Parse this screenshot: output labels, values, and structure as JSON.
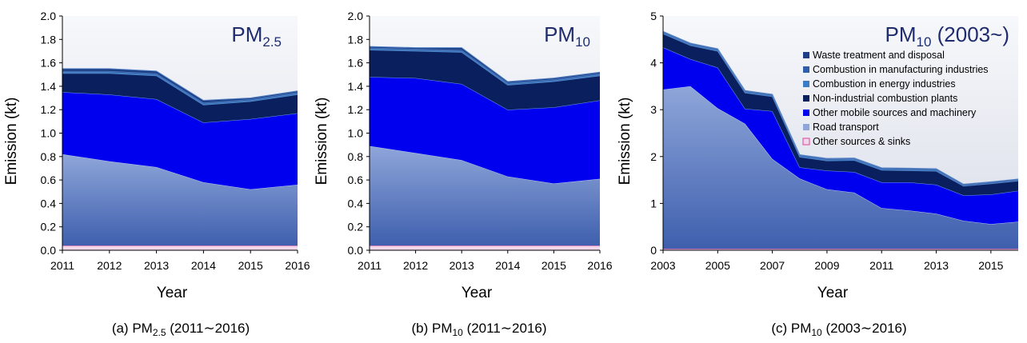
{
  "colors": {
    "road_transport_top": "#8ea6d9",
    "road_transport_bottom": "#3f5fae",
    "other_mobile": "#0000ee",
    "non_industrial": "#0a1f5e",
    "energy_industries": "#3a7dc4",
    "manufacturing": "#2f5fa8",
    "waste": "#1c3f86",
    "other_sources": "#f2d6ea",
    "other_sources_edge": "#e0449a",
    "plot_bg_top": "#f7f8fb",
    "plot_bg_bottom": "#d9dde8",
    "inset_title": "#1f2d6e"
  },
  "chart_data": [
    {
      "type": "area",
      "inset_title": {
        "main": "PM",
        "sub": "2.5"
      },
      "caption": {
        "prefix": "(a) PM",
        "sub": "2.5",
        "suffix": " (2011∼2016)"
      },
      "xlabel": "Year",
      "ylabel": "Emission (kt)",
      "xlim": [
        2011,
        2016
      ],
      "ylim": [
        0,
        2.0
      ],
      "x_ticks": [
        2011,
        2012,
        2013,
        2014,
        2015,
        2016
      ],
      "y_ticks": [
        "0.0",
        "0.2",
        "0.4",
        "0.6",
        "0.8",
        "1.0",
        "1.2",
        "1.4",
        "1.6",
        "1.8",
        "2.0"
      ],
      "x": [
        2011,
        2012,
        2013,
        2014,
        2015,
        2016
      ],
      "series": [
        {
          "name": "Other sources & sinks",
          "key": "other_sources",
          "values": [
            0.04,
            0.04,
            0.04,
            0.04,
            0.04,
            0.04
          ]
        },
        {
          "name": "Road transport",
          "key": "road_transport",
          "values": [
            0.78,
            0.72,
            0.67,
            0.54,
            0.48,
            0.52
          ]
        },
        {
          "name": "Other mobile sources and machinery",
          "key": "other_mobile",
          "values": [
            0.53,
            0.57,
            0.58,
            0.51,
            0.6,
            0.61
          ]
        },
        {
          "name": "Non-industrial combustion plants",
          "key": "non_industrial",
          "values": [
            0.16,
            0.18,
            0.2,
            0.15,
            0.15,
            0.16
          ]
        },
        {
          "name": "Combustion in energy industries",
          "key": "energy_industries",
          "values": [
            0.01,
            0.01,
            0.01,
            0.01,
            0.01,
            0.01
          ]
        },
        {
          "name": "Combustion in manufacturing industries",
          "key": "manufacturing",
          "values": [
            0.01,
            0.01,
            0.01,
            0.01,
            0.01,
            0.01
          ]
        },
        {
          "name": "Waste treatment and disposal",
          "key": "waste",
          "values": [
            0.02,
            0.02,
            0.02,
            0.02,
            0.01,
            0.01
          ]
        }
      ]
    },
    {
      "type": "area",
      "inset_title": {
        "main": "PM",
        "sub": "10"
      },
      "caption": {
        "prefix": "(b) PM",
        "sub": "10",
        "suffix": " (2011∼2016)"
      },
      "xlabel": "Year",
      "ylabel": "Emission (kt)",
      "xlim": [
        2011,
        2016
      ],
      "ylim": [
        0,
        2.0
      ],
      "x_ticks": [
        2011,
        2012,
        2013,
        2014,
        2015,
        2016
      ],
      "y_ticks": [
        "0.0",
        "0.2",
        "0.4",
        "0.6",
        "0.8",
        "1.0",
        "1.2",
        "1.4",
        "1.6",
        "1.8",
        "2.0"
      ],
      "x": [
        2011,
        2012,
        2013,
        2014,
        2015,
        2016
      ],
      "series": [
        {
          "name": "Other sources & sinks",
          "key": "other_sources",
          "values": [
            0.04,
            0.04,
            0.04,
            0.04,
            0.04,
            0.04
          ]
        },
        {
          "name": "Road transport",
          "key": "road_transport",
          "values": [
            0.85,
            0.79,
            0.73,
            0.59,
            0.53,
            0.57
          ]
        },
        {
          "name": "Other mobile sources and machinery",
          "key": "other_mobile",
          "values": [
            0.59,
            0.64,
            0.65,
            0.57,
            0.65,
            0.67
          ]
        },
        {
          "name": "Non-industrial combustion plants",
          "key": "non_industrial",
          "values": [
            0.23,
            0.23,
            0.27,
            0.21,
            0.22,
            0.21
          ]
        },
        {
          "name": "Combustion in energy industries",
          "key": "energy_industries",
          "values": [
            0.01,
            0.01,
            0.01,
            0.01,
            0.01,
            0.01
          ]
        },
        {
          "name": "Combustion in manufacturing industries",
          "key": "manufacturing",
          "values": [
            0.01,
            0.01,
            0.01,
            0.01,
            0.01,
            0.01
          ]
        },
        {
          "name": "Waste treatment and disposal",
          "key": "waste",
          "values": [
            0.01,
            0.01,
            0.02,
            0.01,
            0.01,
            0.01
          ]
        }
      ]
    },
    {
      "type": "area",
      "inset_title": {
        "main": "PM",
        "sub": "10",
        "suffix": " (2003~)"
      },
      "caption": {
        "prefix": "(c) PM",
        "sub": "10",
        "suffix": " (2003∼2016)"
      },
      "xlabel": "Year",
      "ylabel": "Emission (kt)",
      "xlim": [
        2003,
        2016
      ],
      "ylim": [
        0,
        5
      ],
      "x_ticks": [
        2003,
        2005,
        2007,
        2009,
        2011,
        2013,
        2015
      ],
      "y_ticks": [
        "0",
        "1",
        "2",
        "3",
        "4",
        "5"
      ],
      "x": [
        2003,
        2004,
        2005,
        2006,
        2007,
        2008,
        2009,
        2010,
        2011,
        2012,
        2013,
        2014,
        2015,
        2016
      ],
      "legend_position": "top-right",
      "legend": [
        {
          "label": "Waste treatment and disposal",
          "key": "waste"
        },
        {
          "label": "Combustion in manufacturing industries",
          "key": "manufacturing"
        },
        {
          "label": "Combustion in energy industries",
          "key": "energy_industries"
        },
        {
          "label": "Non-industrial combustion plants",
          "key": "non_industrial"
        },
        {
          "label": "Other mobile sources and machinery",
          "key": "other_mobile"
        },
        {
          "label": "Road transport",
          "key": "road_transport"
        },
        {
          "label": "Other sources & sinks",
          "key": "other_sources"
        }
      ],
      "series": [
        {
          "name": "Other sources & sinks",
          "key": "other_sources",
          "values": [
            0.03,
            0.03,
            0.03,
            0.03,
            0.03,
            0.03,
            0.03,
            0.03,
            0.03,
            0.03,
            0.03,
            0.03,
            0.03,
            0.03
          ]
        },
        {
          "name": "Road transport",
          "key": "road_transport",
          "values": [
            3.4,
            3.47,
            3.0,
            2.67,
            1.92,
            1.5,
            1.27,
            1.2,
            0.87,
            0.82,
            0.75,
            0.6,
            0.53,
            0.58
          ]
        },
        {
          "name": "Other mobile sources and machinery",
          "key": "other_mobile",
          "values": [
            0.9,
            0.58,
            0.87,
            0.32,
            1.02,
            0.24,
            0.4,
            0.44,
            0.55,
            0.6,
            0.62,
            0.54,
            0.63,
            0.66
          ]
        },
        {
          "name": "Non-industrial combustion plants",
          "key": "non_industrial",
          "values": [
            0.29,
            0.29,
            0.35,
            0.34,
            0.31,
            0.22,
            0.21,
            0.25,
            0.26,
            0.25,
            0.29,
            0.2,
            0.23,
            0.21
          ]
        },
        {
          "name": "Combustion in energy industries",
          "key": "energy_industries",
          "values": [
            0.02,
            0.02,
            0.02,
            0.02,
            0.02,
            0.02,
            0.02,
            0.02,
            0.02,
            0.02,
            0.02,
            0.01,
            0.01,
            0.01
          ]
        },
        {
          "name": "Combustion in manufacturing industries",
          "key": "manufacturing",
          "values": [
            0.02,
            0.02,
            0.02,
            0.02,
            0.02,
            0.02,
            0.02,
            0.02,
            0.02,
            0.02,
            0.02,
            0.02,
            0.02,
            0.02
          ]
        },
        {
          "name": "Waste treatment and disposal",
          "key": "waste",
          "values": [
            0.01,
            0.01,
            0.01,
            0.01,
            0.01,
            0.01,
            0.01,
            0.01,
            0.01,
            0.01,
            0.01,
            0.01,
            0.01,
            0.01
          ]
        }
      ]
    }
  ]
}
